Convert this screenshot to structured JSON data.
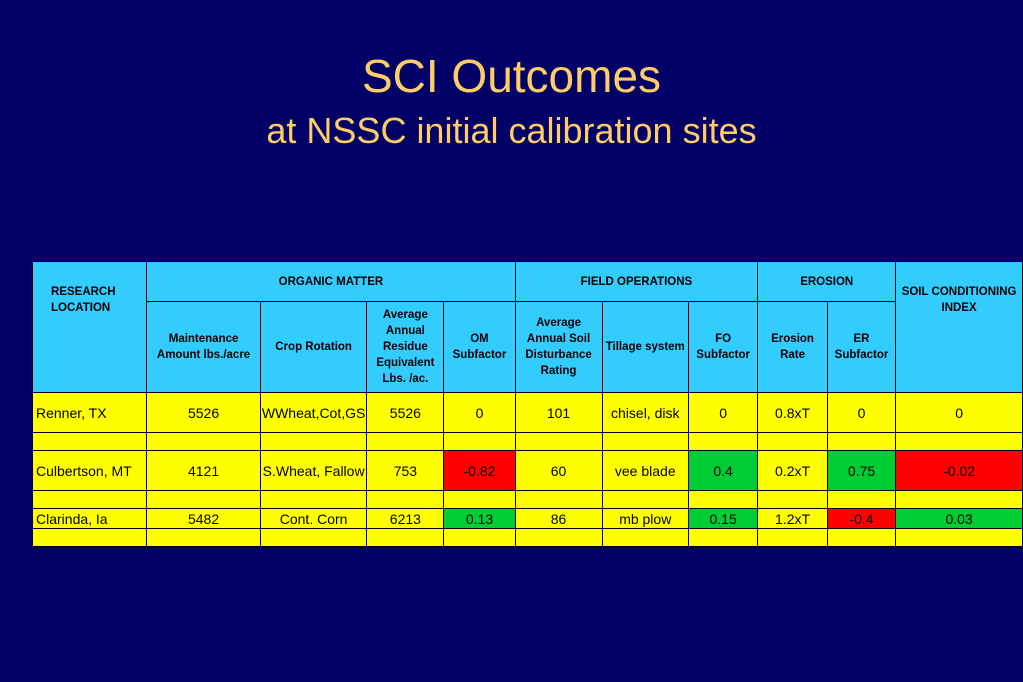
{
  "slide": {
    "title": "SCI Outcomes",
    "subtitle": "at NSSC initial calibration sites"
  },
  "table": {
    "group_headers": {
      "location": "RESEARCH LOCATION",
      "organic_matter": "ORGANIC MATTER",
      "field_operations": "FIELD OPERATIONS",
      "erosion": "EROSION",
      "sci": "SOIL CONDITIONING INDEX"
    },
    "column_headers": [
      "Maintenance Amount lbs./acre",
      "Crop Rotation",
      "Average Annual Residue Equivalent Lbs. /ac.",
      "OM Subfactor",
      "Average Annual Soil Disturbance Rating",
      "Tillage system",
      "FO Subfactor",
      "Erosion Rate",
      "ER Subfactor"
    ],
    "rows": [
      {
        "location": "Renner, TX",
        "maintenance": "5526",
        "crop_rotation": "WWheat,Cot,GS",
        "residue": "5526",
        "om_subfactor": "0",
        "disturbance": "101",
        "tillage": "chisel, disk",
        "fo_subfactor": "0",
        "erosion_rate": "0.8xT",
        "er_subfactor": "0",
        "sci": "0"
      },
      {
        "location": "Culbertson, MT",
        "maintenance": "4121",
        "crop_rotation": "S.Wheat, Fallow",
        "residue": "753",
        "om_subfactor": "-0.82",
        "disturbance": "60",
        "tillage": "vee blade",
        "fo_subfactor": "0.4",
        "erosion_rate": "0.2xT",
        "er_subfactor": "0.75",
        "sci": "-0.02"
      },
      {
        "location": "Clarinda, Ia",
        "maintenance": "5482",
        "crop_rotation": "Cont. Corn",
        "residue": "6213",
        "om_subfactor": "0.13",
        "disturbance": "86",
        "tillage": "mb plow",
        "fo_subfactor": "0.15",
        "erosion_rate": "1.2xT",
        "er_subfactor": "-0.4",
        "sci": "0.03"
      }
    ]
  },
  "colors": {
    "background": "#000066",
    "title": "#ffcc66",
    "header_fill": "#33ccff",
    "cell_fill": "#ffff00",
    "negative_fill": "#ff0000",
    "positive_fill": "#00cc33"
  }
}
